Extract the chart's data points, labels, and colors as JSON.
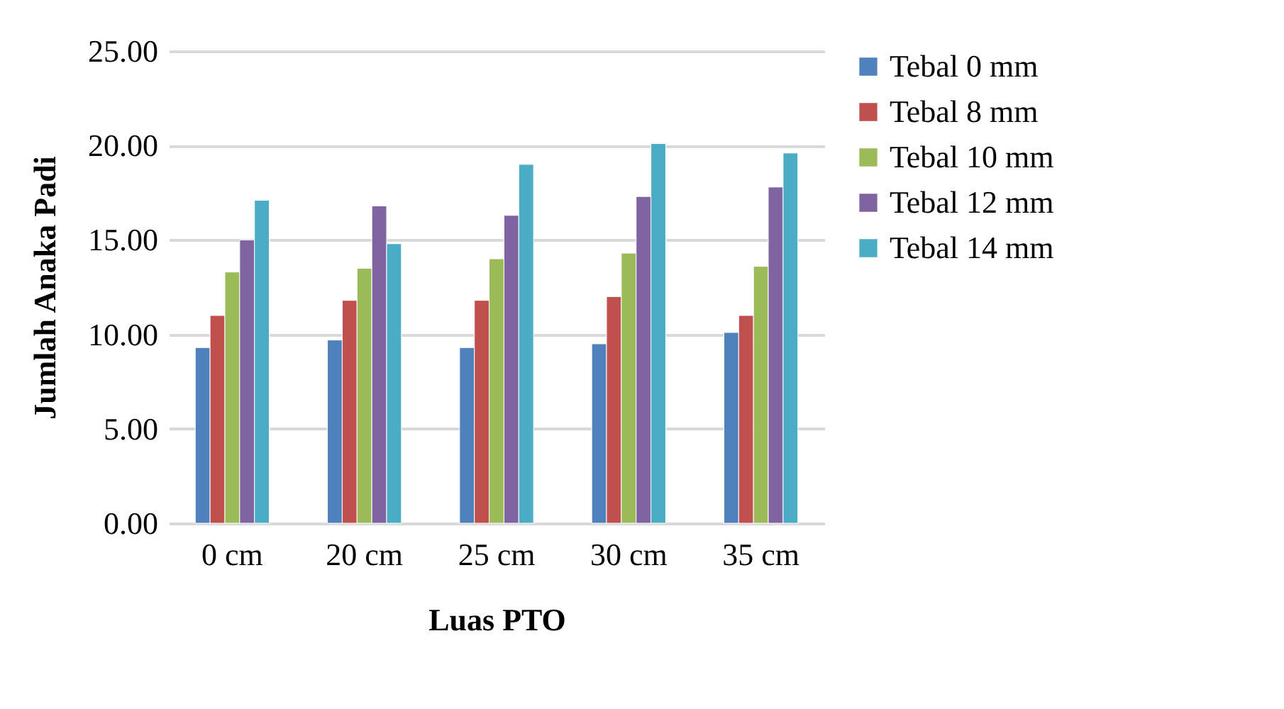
{
  "chart_data": {
    "type": "bar",
    "xlabel": "Luas PTO",
    "ylabel": "Jumlah Anaka Padi",
    "categories": [
      "0 cm",
      "20 cm",
      "25 cm",
      "30 cm",
      "35 cm"
    ],
    "series": [
      {
        "name": "Tebal 0 mm",
        "color": "#4f81bd",
        "values": [
          9.3,
          9.7,
          9.3,
          9.5,
          10.1
        ]
      },
      {
        "name": "Tebal 8 mm",
        "color": "#c0504d",
        "values": [
          11.0,
          11.8,
          11.8,
          12.0,
          11.0
        ]
      },
      {
        "name": "Tebal 10 mm",
        "color": "#9bbb59",
        "values": [
          13.3,
          13.5,
          14.0,
          14.3,
          13.6
        ]
      },
      {
        "name": "Tebal 12 mm",
        "color": "#8064a2",
        "values": [
          15.0,
          16.8,
          16.3,
          17.3,
          17.8
        ]
      },
      {
        "name": "Tebal 14 mm",
        "color": "#4bacc6",
        "values": [
          17.1,
          14.8,
          19.0,
          20.1,
          19.6
        ]
      }
    ],
    "ylim": [
      0,
      25
    ],
    "yticks": [
      {
        "value": 0,
        "label": "0.00"
      },
      {
        "value": 5,
        "label": "5.00"
      },
      {
        "value": 10,
        "label": "10.00"
      },
      {
        "value": 15,
        "label": "15.00"
      },
      {
        "value": 20,
        "label": "20.00"
      },
      {
        "value": 25,
        "label": "25.00"
      }
    ],
    "grid": true,
    "legend": "right"
  }
}
